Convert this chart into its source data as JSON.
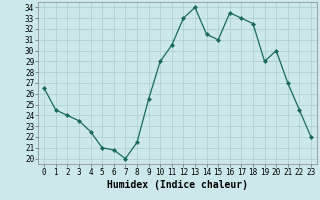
{
  "x": [
    0,
    1,
    2,
    3,
    4,
    5,
    6,
    7,
    8,
    9,
    10,
    11,
    12,
    13,
    14,
    15,
    16,
    17,
    18,
    19,
    20,
    21,
    22,
    23
  ],
  "y": [
    26.5,
    24.5,
    24.0,
    23.5,
    22.5,
    21.0,
    20.8,
    20.0,
    21.5,
    25.5,
    29.0,
    30.5,
    33.0,
    34.0,
    31.5,
    31.0,
    33.5,
    33.0,
    32.5,
    29.0,
    30.0,
    27.0,
    24.5,
    22.0
  ],
  "xlabel": "Humidex (Indice chaleur)",
  "xlim": [
    -0.5,
    23.5
  ],
  "ylim": [
    19.5,
    34.5
  ],
  "yticks": [
    20,
    21,
    22,
    23,
    24,
    25,
    26,
    27,
    28,
    29,
    30,
    31,
    32,
    33,
    34
  ],
  "xticks": [
    0,
    1,
    2,
    3,
    4,
    5,
    6,
    7,
    8,
    9,
    10,
    11,
    12,
    13,
    14,
    15,
    16,
    17,
    18,
    19,
    20,
    21,
    22,
    23
  ],
  "line_color": "#1a6b5a",
  "marker": "D",
  "marker_size": 2.0,
  "bg_color": "#cce8ea",
  "grid_color": "#aacccc",
  "tick_fontsize": 5.5,
  "xlabel_fontsize": 7.0
}
